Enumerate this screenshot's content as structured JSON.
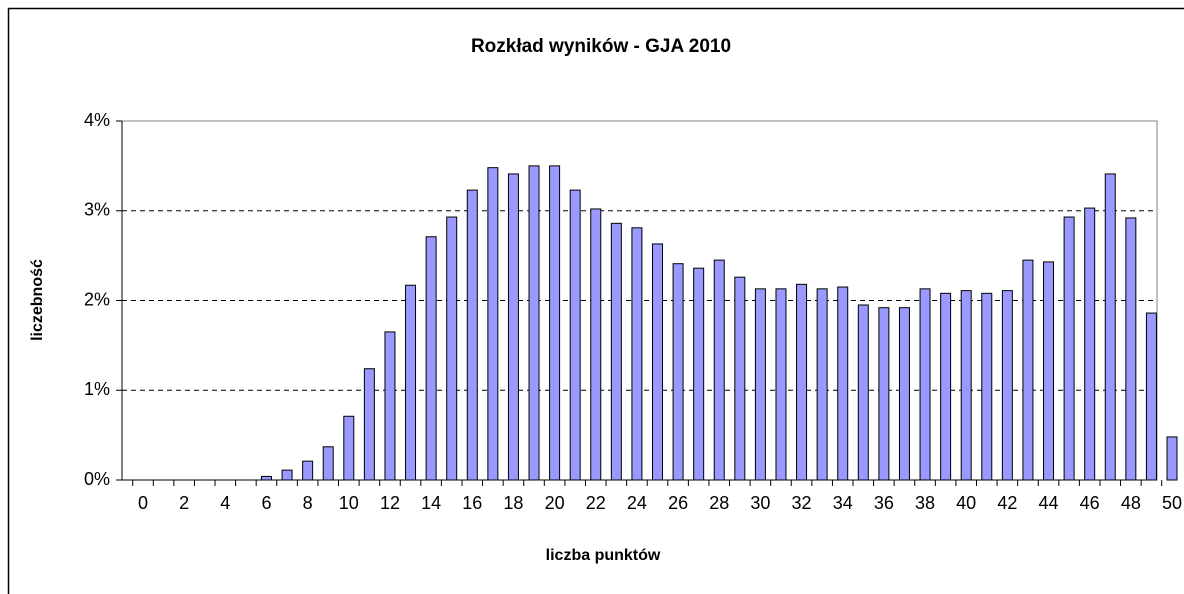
{
  "chart_data": {
    "type": "bar",
    "title": "Rozkład wyników - GJA 2010",
    "x_label": "liczba punktów",
    "y_label": "liczebność",
    "categories": [
      "0",
      null,
      "2",
      null,
      "4",
      null,
      "6",
      null,
      "8",
      null,
      "10",
      null,
      "12",
      null,
      "14",
      null,
      "16",
      null,
      "18",
      null,
      "20",
      null,
      "22",
      null,
      "24",
      null,
      "26",
      null,
      "28",
      null,
      "30",
      null,
      "32",
      null,
      "34",
      null,
      "36",
      null,
      "38",
      null,
      "40",
      null,
      "42",
      null,
      "44",
      null,
      "46",
      null,
      "48",
      null,
      "50"
    ],
    "values": [
      0,
      0,
      0,
      0,
      0,
      0,
      0.04,
      0.11,
      0.21,
      0.37,
      0.71,
      1.24,
      1.65,
      2.17,
      2.71,
      2.93,
      3.23,
      3.48,
      3.41,
      3.5,
      3.5,
      3.23,
      3.02,
      2.86,
      2.81,
      2.63,
      2.41,
      2.36,
      2.45,
      2.26,
      2.13,
      2.13,
      2.18,
      2.13,
      2.15,
      1.95,
      1.92,
      1.92,
      2.13,
      2.08,
      2.11,
      2.08,
      2.11,
      2.45,
      2.43,
      2.93,
      3.03,
      3.41,
      2.92,
      1.86,
      0.48
    ],
    "color": "#9999ff",
    "ylim": [
      0,
      4
    ],
    "yticks": [
      {
        "value": 0,
        "label": "0%"
      },
      {
        "value": 1,
        "label": "1%"
      },
      {
        "value": 2,
        "label": "2%"
      },
      {
        "value": 3,
        "label": "3%"
      },
      {
        "value": 4,
        "label": "4%"
      }
    ],
    "grid": true
  }
}
